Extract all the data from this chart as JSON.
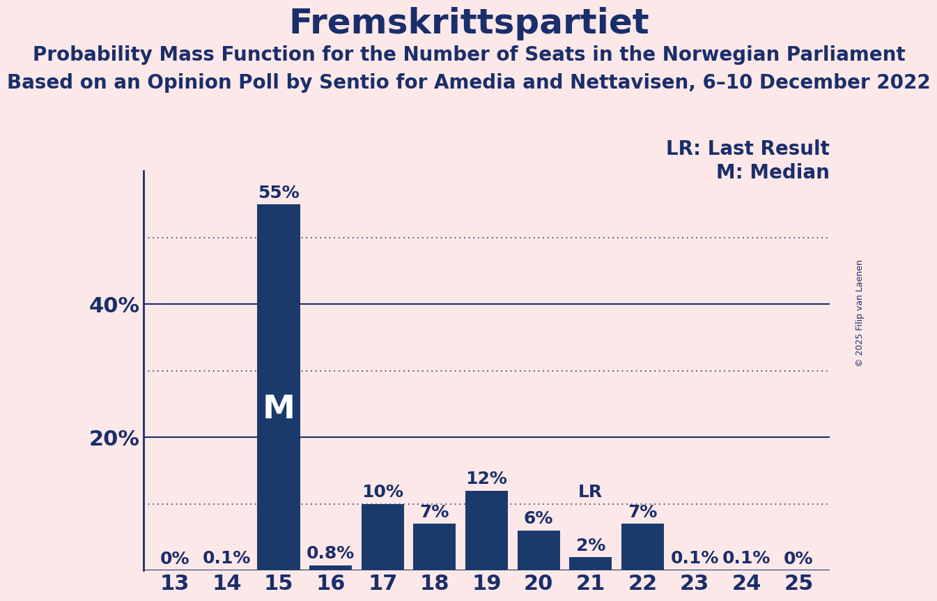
{
  "title": "Fremskrittspartiet",
  "subtitle1": "Probability Mass Function for the Number of Seats in the Norwegian Parliament",
  "subtitle2": "Based on an Opinion Poll by Sentio for Amedia and Nettavisen, 6–10 December 2022",
  "copyright": "© 2025 Filip van Laenen",
  "seats": [
    13,
    14,
    15,
    16,
    17,
    18,
    19,
    20,
    21,
    22,
    23,
    24,
    25
  ],
  "probabilities": [
    0.0,
    0.1,
    55.0,
    0.8,
    10.0,
    7.0,
    12.0,
    6.0,
    2.0,
    7.0,
    0.1,
    0.1,
    0.0
  ],
  "bar_color": "#1a3a6b",
  "background_color": "#fce8e8",
  "text_color": "#1a2e6b",
  "median_seat": 15,
  "last_result_seat": 21,
  "legend_lr": "LR: Last Result",
  "legend_m": "M: Median",
  "ylim": [
    0,
    60
  ],
  "yticks": [
    20,
    40
  ],
  "ytick_labels": [
    "20%",
    "40%"
  ],
  "grid_lines": [
    10,
    30,
    50
  ],
  "solid_lines": [
    20,
    40
  ],
  "bar_label_fontsize": 18,
  "title_fontsize": 36,
  "subtitle_fontsize": 20,
  "axis_label_fontsize": 22,
  "legend_fontsize": 20,
  "bar_width": 0.82
}
